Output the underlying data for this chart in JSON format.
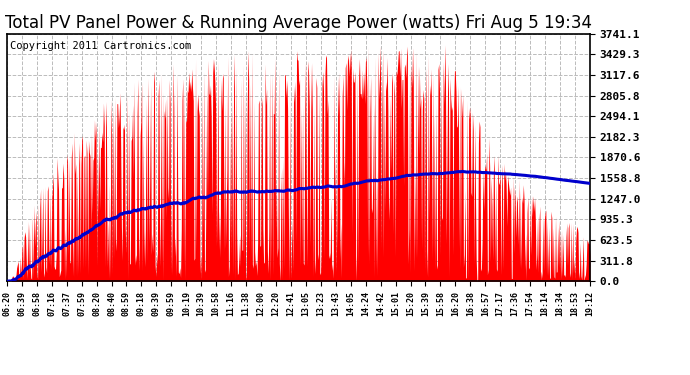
{
  "title": "Total PV Panel Power & Running Average Power (watts) Fri Aug 5 19:34",
  "copyright": "Copyright 2011 Cartronics.com",
  "yticks": [
    0.0,
    311.8,
    623.5,
    935.3,
    1247.0,
    1558.8,
    1870.6,
    2182.3,
    2494.1,
    2805.8,
    3117.6,
    3429.3,
    3741.1
  ],
  "ymax": 3741.1,
  "xtick_labels": [
    "06:20",
    "06:39",
    "06:58",
    "07:16",
    "07:37",
    "07:59",
    "08:20",
    "08:40",
    "08:59",
    "09:18",
    "09:39",
    "09:59",
    "10:19",
    "10:39",
    "10:58",
    "11:16",
    "11:38",
    "12:00",
    "12:20",
    "12:41",
    "13:05",
    "13:23",
    "13:43",
    "14:05",
    "14:24",
    "14:42",
    "15:01",
    "15:20",
    "15:39",
    "15:58",
    "16:20",
    "16:38",
    "16:57",
    "17:17",
    "17:36",
    "17:54",
    "18:14",
    "18:34",
    "18:53",
    "19:12"
  ],
  "background_color": "#ffffff",
  "plot_bg_color": "#ffffff",
  "bar_color": "#ff0000",
  "line_color": "#0000cc",
  "grid_color": "#bbbbbb",
  "title_fontsize": 12,
  "copyright_fontsize": 7.5
}
